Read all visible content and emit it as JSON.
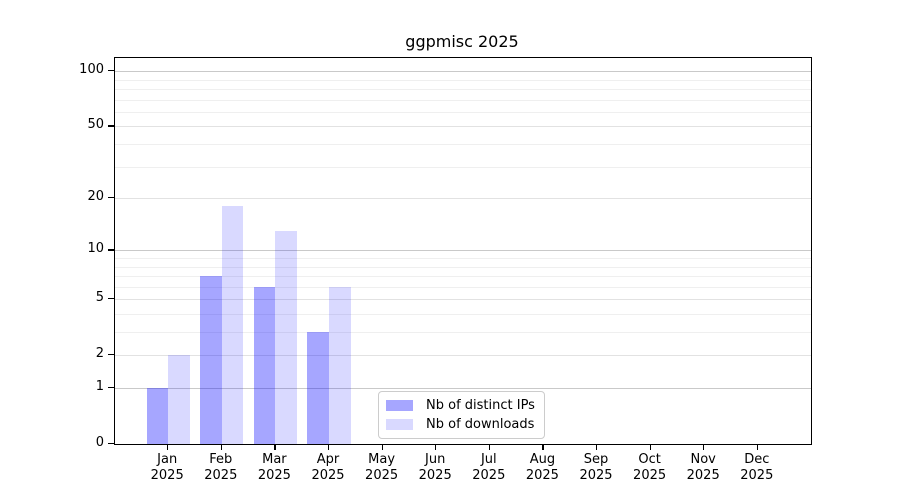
{
  "title": "ggpmisc 2025",
  "legend": {
    "items": [
      {
        "label": "Nb of distinct IPs",
        "color": "rgba(0,0,255,0.35)"
      },
      {
        "label": "Nb of downloads",
        "color": "rgba(0,0,255,0.15)"
      }
    ]
  },
  "chart_data": {
    "type": "bar",
    "title": "ggpmisc 2025",
    "categories": [
      "Jan 2025",
      "Feb 2025",
      "Mar 2025",
      "Apr 2025",
      "May 2025",
      "Jun 2025",
      "Jul 2025",
      "Aug 2025",
      "Sep 2025",
      "Oct 2025",
      "Nov 2025",
      "Dec 2025"
    ],
    "series": [
      {
        "name": "Nb of distinct IPs",
        "color": "rgba(0,0,255,0.35)",
        "values": [
          1,
          7,
          6,
          3,
          0,
          0,
          0,
          0,
          0,
          0,
          0,
          0
        ]
      },
      {
        "name": "Nb of downloads",
        "color": "rgba(0,0,255,0.15)",
        "values": [
          2,
          18,
          13,
          6,
          0,
          0,
          0,
          0,
          0,
          0,
          0,
          0
        ]
      }
    ],
    "xlabel": "",
    "ylabel": "",
    "yscale": "log1p",
    "ylim": [
      0,
      118
    ],
    "yticks": [
      0,
      1,
      2,
      5,
      10,
      20,
      50,
      100
    ],
    "yticks_minor": [
      3,
      4,
      6,
      7,
      8,
      9,
      30,
      40,
      60,
      70,
      80,
      90
    ],
    "grid": true,
    "legend_position": "lower center-left",
    "colors": {
      "grid_decade": "#c9c9c9",
      "grid_labeled": "#e2e2e2",
      "grid_minor": "#efefef",
      "spine": "#000000"
    }
  }
}
